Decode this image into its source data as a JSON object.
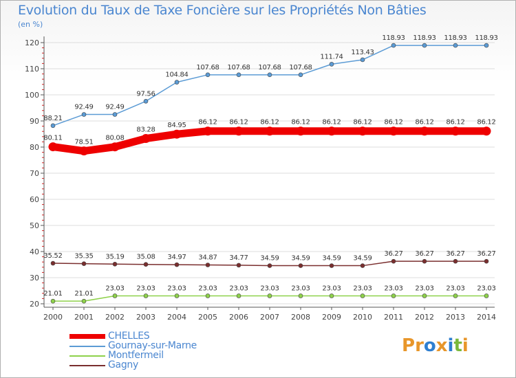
{
  "title": "Evolution du Taux de Taxe Foncière sur les Propriétés Non Bâties",
  "unit_label": "(en %)",
  "logo": {
    "text": "Proxiti",
    "letters": [
      "P",
      "r",
      "o",
      "x",
      "i",
      "t",
      "i"
    ],
    "colors": [
      "#e8962a",
      "#e8962a",
      "#2f7fd0",
      "#e8962a",
      "#2f7fd0",
      "#7ab83a",
      "#e8962a"
    ]
  },
  "chart_data": {
    "type": "line",
    "title": "Evolution du Taux de Taxe Foncière sur les Propriétés Non Bâties",
    "ylabel": "(en %)",
    "xlabel": "",
    "x": [
      "2000",
      "2001",
      "2002",
      "2003",
      "2004",
      "2005",
      "2006",
      "2007",
      "2008",
      "2009",
      "2010",
      "2011",
      "2012",
      "2013",
      "2014"
    ],
    "ylim": [
      20,
      120
    ],
    "yticks": [
      20,
      30,
      40,
      50,
      60,
      70,
      80,
      90,
      100,
      110,
      120
    ],
    "series": [
      {
        "name": "CHELLES",
        "color": "#ee0000",
        "emphasis": "thick",
        "values": [
          80.11,
          78.51,
          80.08,
          83.28,
          84.95,
          86.12,
          86.12,
          86.12,
          86.12,
          86.12,
          86.12,
          86.12,
          86.12,
          86.12,
          86.12
        ],
        "labels": [
          "80.11",
          "78.51",
          "80.08",
          "83.28",
          "84.95",
          "86.12",
          "86.12",
          "86.12",
          "86.12",
          "86.12",
          "86.12",
          "86.12",
          "86.12",
          "86.12",
          "86.12"
        ]
      },
      {
        "name": "Gournay-sur-Marne",
        "color": "#5b9bd5",
        "values": [
          88.21,
          92.49,
          92.49,
          97.56,
          104.84,
          107.68,
          107.68,
          107.68,
          107.68,
          111.74,
          113.43,
          118.93,
          118.93,
          118.93,
          118.93
        ],
        "labels": [
          "88.21",
          "92.49",
          "92.49",
          "97.56",
          "104.84",
          "107.68",
          "107.68",
          "107.68",
          "107.68",
          "111.74",
          "113.43",
          "118.93",
          "118.93",
          "118.93",
          "118.93"
        ]
      },
      {
        "name": "Montfermeil",
        "color": "#8ed14a",
        "values": [
          21.01,
          21.01,
          23.03,
          23.03,
          23.03,
          23.03,
          23.03,
          23.03,
          23.03,
          23.03,
          23.03,
          23.03,
          23.03,
          23.03,
          23.03
        ],
        "labels": [
          "21.01",
          "21.01",
          "23.03",
          "23.03",
          "23.03",
          "23.03",
          "23.03",
          "23.03",
          "23.03",
          "23.03",
          "23.03",
          "23.03",
          "23.03",
          "23.03",
          "23.03"
        ]
      },
      {
        "name": "Gagny",
        "color": "#7a2e2e",
        "values": [
          35.52,
          35.35,
          35.19,
          35.08,
          34.97,
          34.87,
          34.77,
          34.59,
          34.59,
          34.59,
          34.59,
          36.27,
          36.27,
          36.27,
          36.27
        ],
        "labels": [
          "35.52",
          "35.35",
          "35.19",
          "35.08",
          "34.97",
          "34.87",
          "34.77",
          "34.59",
          "34.59",
          "34.59",
          "34.59",
          "36.27",
          "36.27",
          "36.27",
          "36.27"
        ]
      }
    ],
    "legend": [
      {
        "label": "CHELLES",
        "color": "#ee0000"
      },
      {
        "label": "Gournay-sur-Marne",
        "color": "#5b9bd5"
      },
      {
        "label": "Montfermeil",
        "color": "#8ed14a"
      },
      {
        "label": "Gagny",
        "color": "#7a2e2e"
      }
    ],
    "legend_position": "bottom-left"
  }
}
